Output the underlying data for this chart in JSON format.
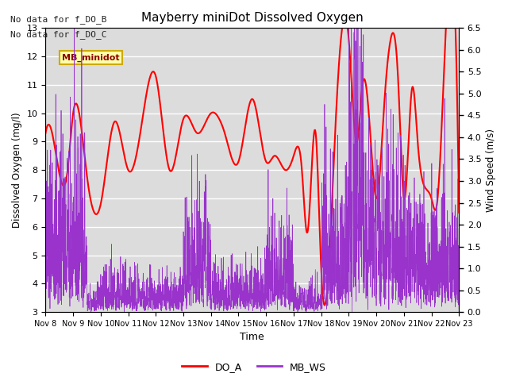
{
  "title": "Mayberry miniDot Dissolved Oxygen",
  "xlabel": "Time",
  "ylabel_left": "Dissolved Oxygen (mg/l)",
  "ylabel_right": "Wind Speed (m/s)",
  "annotations": [
    "No data for f_DO_B",
    "No data for f_DO_C"
  ],
  "legend_box_label": "MB_minidot",
  "legend_entries": [
    "DO_A",
    "MB_WS"
  ],
  "do_color": "#ff0000",
  "ws_color": "#9933cc",
  "bg_color": "#dcdcdc",
  "plot_bg": "#dcdcdc",
  "ylim_left": [
    3.0,
    13.0
  ],
  "ylim_right": [
    0.0,
    6.5
  ],
  "yticks_left": [
    3.0,
    4.0,
    5.0,
    6.0,
    7.0,
    8.0,
    9.0,
    10.0,
    11.0,
    12.0,
    13.0
  ],
  "yticks_right": [
    0.0,
    0.5,
    1.0,
    1.5,
    2.0,
    2.5,
    3.0,
    3.5,
    4.0,
    4.5,
    5.0,
    5.5,
    6.0,
    6.5
  ],
  "xtick_labels": [
    "Nov 8",
    "Nov 9",
    "Nov 10",
    "Nov 11",
    "Nov 12",
    "Nov 13",
    "Nov 14",
    "Nov 15",
    "Nov 16",
    "Nov 17",
    "Nov 18",
    "Nov 19",
    "Nov 20",
    "Nov 21",
    "Nov 22",
    "Nov 23"
  ],
  "xlim": [
    0,
    15
  ],
  "figsize": [
    6.4,
    4.8
  ],
  "dpi": 100
}
